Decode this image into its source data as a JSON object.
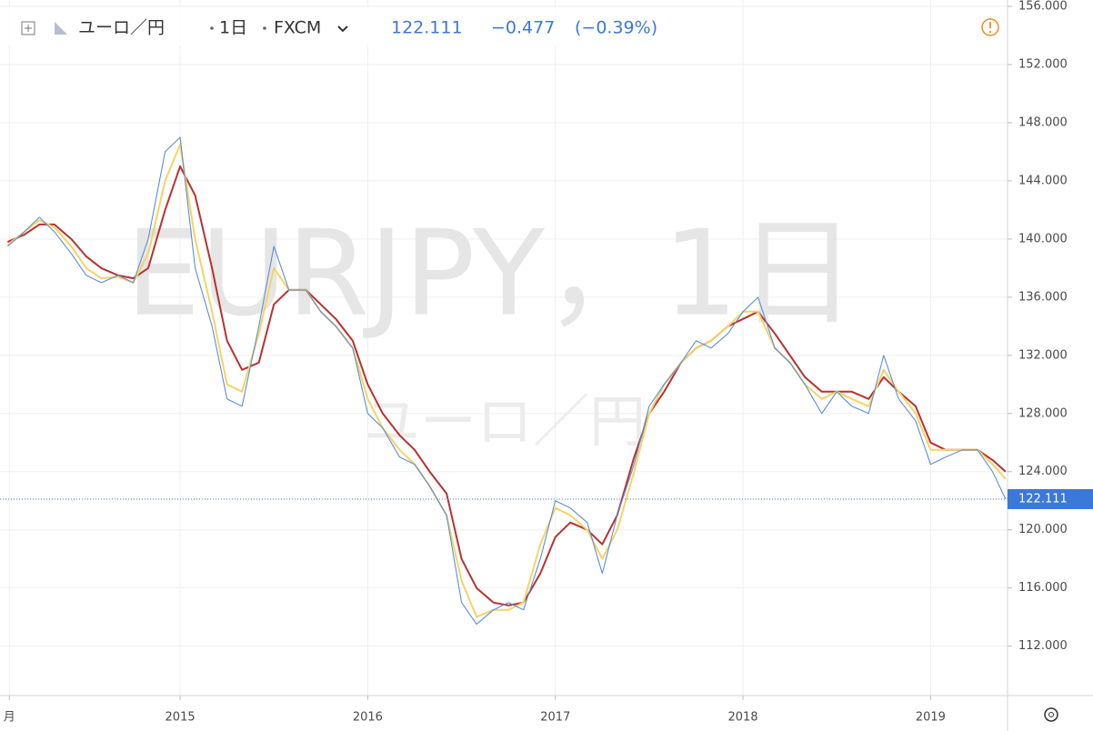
{
  "chart_data": {
    "type": "line",
    "symbol": "ユーロ／円",
    "interval": "1日",
    "exchange": "FXCM",
    "last_price": 122.111,
    "change": "−0.477",
    "change_pct": "(−0.39%)",
    "watermark": "EURJPY，1日",
    "watermark_sub": "ユーロ／円",
    "x": [
      2014.08,
      2014.17,
      2014.25,
      2014.33,
      2014.42,
      2014.5,
      2014.58,
      2014.67,
      2014.75,
      2014.83,
      2014.92,
      2015.0,
      2015.08,
      2015.17,
      2015.25,
      2015.33,
      2015.42,
      2015.5,
      2015.58,
      2015.67,
      2015.75,
      2015.83,
      2015.92,
      2016.0,
      2016.08,
      2016.17,
      2016.25,
      2016.33,
      2016.42,
      2016.5,
      2016.58,
      2016.67,
      2016.75,
      2016.83,
      2016.92,
      2017.0,
      2017.08,
      2017.17,
      2017.25,
      2017.33,
      2017.42,
      2017.5,
      2017.58,
      2017.67,
      2017.75,
      2017.83,
      2017.92,
      2018.0,
      2018.08,
      2018.17,
      2018.25,
      2018.33,
      2018.42,
      2018.5,
      2018.58,
      2018.67,
      2018.75,
      2018.83,
      2018.92,
      2019.0,
      2019.08,
      2019.17,
      2019.25,
      2019.33,
      2019.4
    ],
    "series": [
      {
        "color": "#5b8fd9",
        "values": [
          139.5,
          140.5,
          141.5,
          140.5,
          139,
          137.5,
          137,
          137.5,
          137,
          140,
          146,
          147,
          138,
          134,
          129,
          128.5,
          134,
          139.5,
          136.5,
          136.5,
          135,
          134,
          132.5,
          128,
          127,
          125,
          124.5,
          123,
          121,
          115,
          113.5,
          114.5,
          115,
          114.5,
          118,
          122,
          121.5,
          120.5,
          117,
          121,
          124.5,
          128.5,
          130,
          131.5,
          133,
          132.5,
          133.5,
          135,
          136,
          132.5,
          131.5,
          130,
          128,
          129.5,
          128.5,
          128,
          132,
          129,
          127.5,
          124.5,
          125,
          125.5,
          125.5,
          124,
          122.111
        ]
      },
      {
        "color": "#f6d365",
        "values": [
          139.6,
          140.5,
          141.3,
          140.8,
          139.5,
          138,
          137.3,
          137.4,
          137,
          139,
          144,
          146.5,
          140,
          135,
          130,
          129.5,
          133.5,
          138,
          136.5,
          136.5,
          135,
          134,
          132.5,
          129,
          127,
          125.5,
          124.5,
          123,
          121,
          116.5,
          114,
          114.5,
          114.5,
          115,
          119,
          121.5,
          121,
          120,
          118,
          120,
          124,
          128,
          130,
          131.5,
          132.5,
          133,
          134,
          135,
          135,
          132.5,
          131.5,
          130,
          129,
          129.5,
          129,
          128.5,
          131,
          129.5,
          128,
          125.5,
          125.5,
          125.5,
          125.5,
          124.5,
          123.5
        ]
      },
      {
        "color": "#b8312f",
        "values": [
          139.8,
          140.3,
          141,
          141,
          140,
          138.8,
          138,
          137.5,
          137.3,
          138,
          142,
          145,
          143,
          138,
          133,
          131,
          131.5,
          135.5,
          136.5,
          136.5,
          135.5,
          134.5,
          133,
          130,
          128,
          126.5,
          125.5,
          124,
          122.5,
          118,
          116,
          115,
          114.8,
          115,
          117,
          119.5,
          120.5,
          120,
          119,
          121,
          125,
          128,
          129.5,
          131.5,
          132.5,
          133,
          134,
          134.5,
          135,
          133.5,
          132,
          130.5,
          129.5,
          129.5,
          129.5,
          129,
          130.5,
          129.5,
          128.5,
          126,
          125.5,
          125.5,
          125.5,
          124.8,
          124
        ]
      }
    ],
    "xlim": [
      2014.04,
      2019.41
    ],
    "xticks": [
      {
        "value": 2014.09,
        "label": "月"
      },
      2015,
      2016,
      2017,
      2018,
      2019
    ],
    "ylim": [
      108.6,
      156.44
    ],
    "yticks": [
      {
        "value": 112,
        "label": "112.000"
      },
      {
        "value": 116,
        "label": "116.000"
      },
      {
        "value": 120,
        "label": "120.000"
      },
      {
        "value": 124,
        "label": "124.000"
      },
      {
        "value": 128,
        "label": "128.000"
      },
      {
        "value": 132,
        "label": "132.000"
      },
      {
        "value": 136,
        "label": "136.000"
      },
      {
        "value": 140,
        "label": "140.000"
      },
      {
        "value": 144,
        "label": "144.000"
      },
      {
        "value": 148,
        "label": "148.000"
      },
      {
        "value": 152,
        "label": "152.000"
      },
      {
        "value": 156,
        "label": "156.000"
      }
    ],
    "grid": true
  }
}
